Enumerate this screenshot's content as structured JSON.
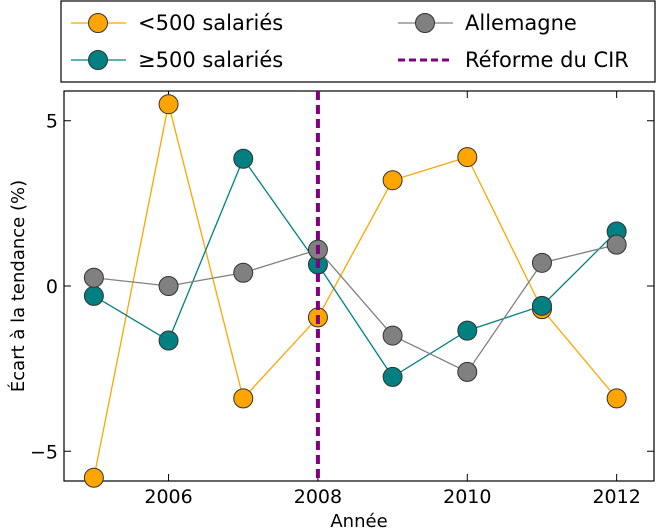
{
  "chart_data": {
    "type": "line",
    "xlabel": "Année",
    "ylabel": "Écart à la tendance (%)",
    "xlim": [
      2004.6,
      2012.5
    ],
    "ylim": [
      -5.9,
      5.9
    ],
    "xticks": [
      2006,
      2008,
      2010,
      2012
    ],
    "xtick_labels": [
      "2006",
      "2008",
      "2010",
      "2012"
    ],
    "yticks": [
      -5,
      0,
      5
    ],
    "ytick_labels": [
      "−5",
      "0",
      "5"
    ],
    "x": [
      2005,
      2006,
      2007,
      2008,
      2009,
      2010,
      2011,
      2012
    ],
    "grid": false,
    "legend_position": "top, outside plot, two columns",
    "series": [
      {
        "name": "<500 salariés",
        "color": "#ffa500",
        "marker": "circle",
        "values": [
          -5.8,
          5.5,
          -3.4,
          -0.95,
          3.2,
          3.9,
          -0.7,
          -3.4
        ]
      },
      {
        "name": "≥500 salariés",
        "color": "#008080",
        "marker": "circle",
        "values": [
          -0.3,
          -1.65,
          3.85,
          0.65,
          -2.75,
          -1.35,
          -0.6,
          1.65
        ]
      },
      {
        "name": "Allemagne",
        "color": "#808080",
        "marker": "circle",
        "values": [
          0.25,
          0.0,
          0.4,
          1.1,
          -1.5,
          -2.6,
          0.7,
          1.25
        ]
      }
    ],
    "annotations": [
      {
        "type": "vline",
        "name": "Réforme du CIR",
        "x": 2008,
        "color": "#800080",
        "style": "dashed"
      }
    ]
  }
}
